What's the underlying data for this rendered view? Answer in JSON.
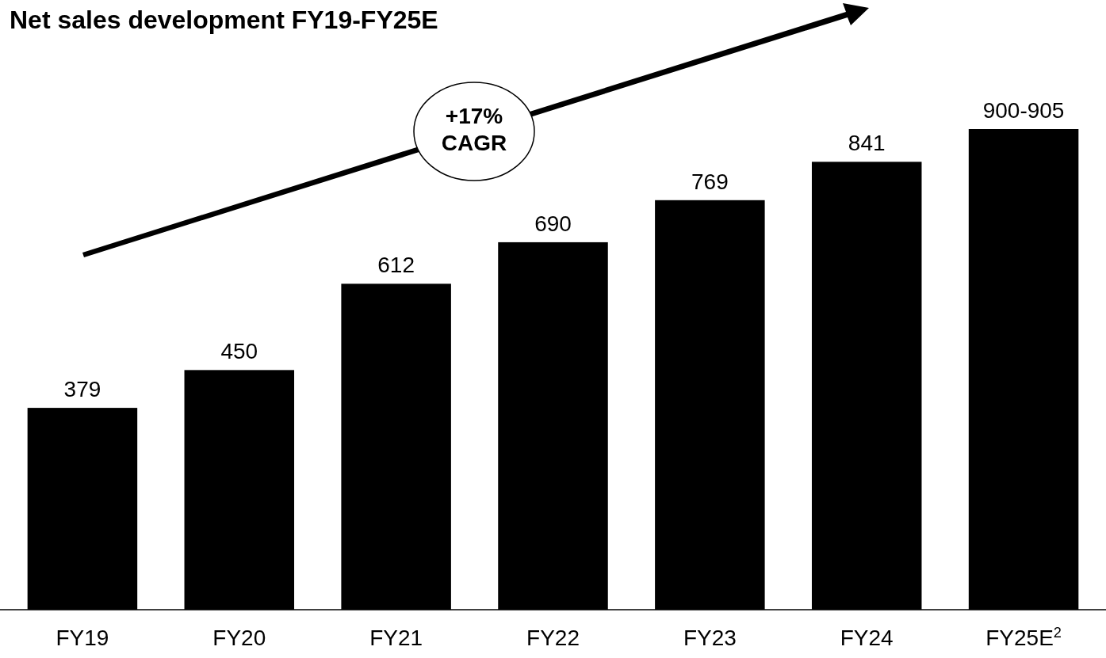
{
  "chart_data": {
    "type": "bar",
    "title": "Net sales development FY19-FY25E",
    "categories": [
      "FY19",
      "FY20",
      "FY21",
      "FY22",
      "FY23",
      "FY24",
      "FY25E$^{2}$"
    ],
    "values": [
      379,
      450,
      612,
      690,
      769,
      841,
      902.5
    ],
    "value_labels": [
      "379",
      "450",
      "612",
      "690",
      "769",
      "841",
      "900-905"
    ],
    "color": "#000000",
    "annotations": [
      "+17% CAGR"
    ]
  }
}
